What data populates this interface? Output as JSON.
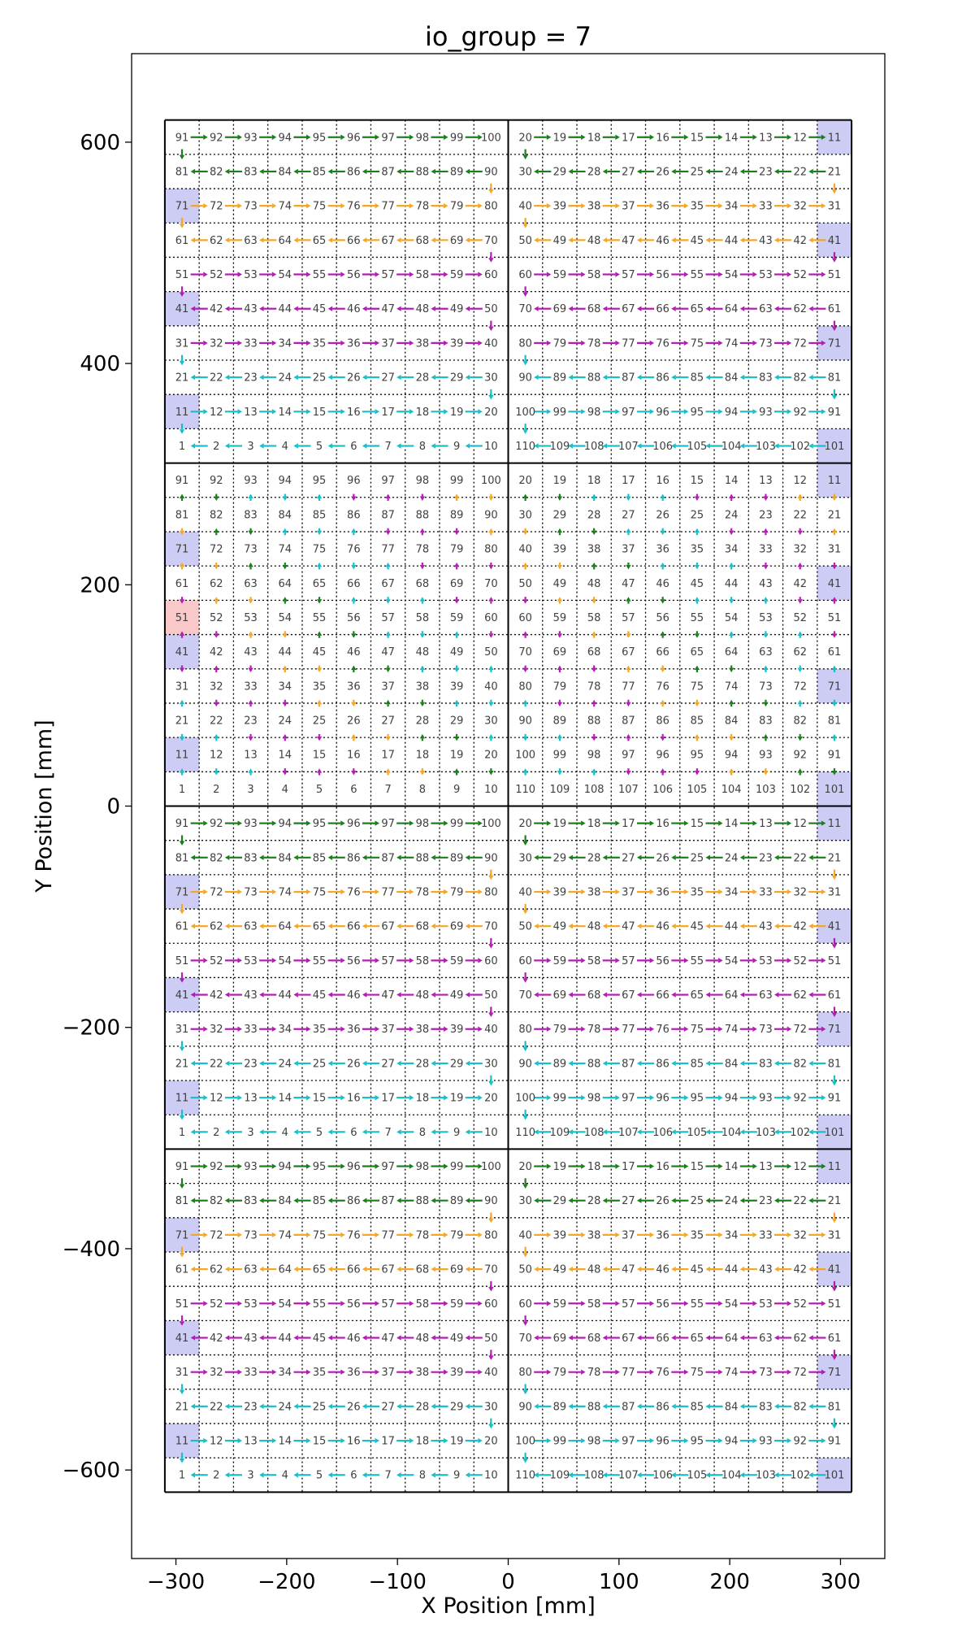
{
  "chart_data": {
    "type": "scatter",
    "title": "io_group = 7",
    "xlabel": "X Position [mm]",
    "ylabel": "Y Position [mm]",
    "xlim": [
      -340,
      340
    ],
    "ylim": [
      -680,
      680
    ],
    "xticks": [
      -300,
      -200,
      -100,
      0,
      100,
      200,
      300
    ],
    "yticks": [
      -600,
      -400,
      -200,
      0,
      200,
      400,
      600
    ],
    "xtick_labels": [
      "−300",
      "−200",
      "−100",
      "0",
      "100",
      "200",
      "300"
    ],
    "ytick_labels": [
      "−600",
      "−400",
      "−200",
      "0",
      "200",
      "400",
      "600"
    ],
    "tile_x_bounds": [
      -310,
      0,
      310
    ],
    "tile_y_bounds": [
      -620,
      -310,
      0,
      310,
      620
    ],
    "chip_pitch_mm": 31,
    "colors": {
      "cyan": "#17bfc8",
      "green": "#1a7f1a",
      "orange": "#f5a623",
      "magenta": "#b51cb5",
      "highlight_blue": "#ccccf5",
      "highlight_red": "#f9c9c9",
      "grid": "#000000"
    },
    "tiles": [
      {
        "name": "tile-upper-left",
        "x0": -310,
        "y0": 310,
        "side": "left"
      },
      {
        "name": "tile-upper-right",
        "x0": 0,
        "y0": 310,
        "side": "right"
      },
      {
        "name": "tile-mid-upper-left",
        "x0": -310,
        "y0": 0,
        "side": "left",
        "variant": "columns"
      },
      {
        "name": "tile-mid-upper-right",
        "x0": 0,
        "y0": 0,
        "side": "right",
        "variant": "columns"
      },
      {
        "name": "tile-mid-lower-left",
        "x0": -310,
        "y0": -310,
        "side": "left"
      },
      {
        "name": "tile-mid-lower-right",
        "x0": 0,
        "y0": -310,
        "side": "right"
      },
      {
        "name": "tile-lower-left",
        "x0": -310,
        "y0": -620,
        "side": "left"
      },
      {
        "name": "tile-lower-right",
        "x0": 0,
        "y0": -620,
        "side": "right"
      }
    ],
    "highlighted_chips": {
      "blue": [
        11,
        41,
        71,
        101
      ],
      "red_in_tile": "tile-mid-upper-left",
      "red": [
        51
      ]
    },
    "row_colors_by_chip_row": [
      "cyan",
      "cyan",
      "cyan",
      "magenta",
      "magenta",
      "magenta",
      "orange",
      "orange",
      "green",
      "green"
    ]
  }
}
